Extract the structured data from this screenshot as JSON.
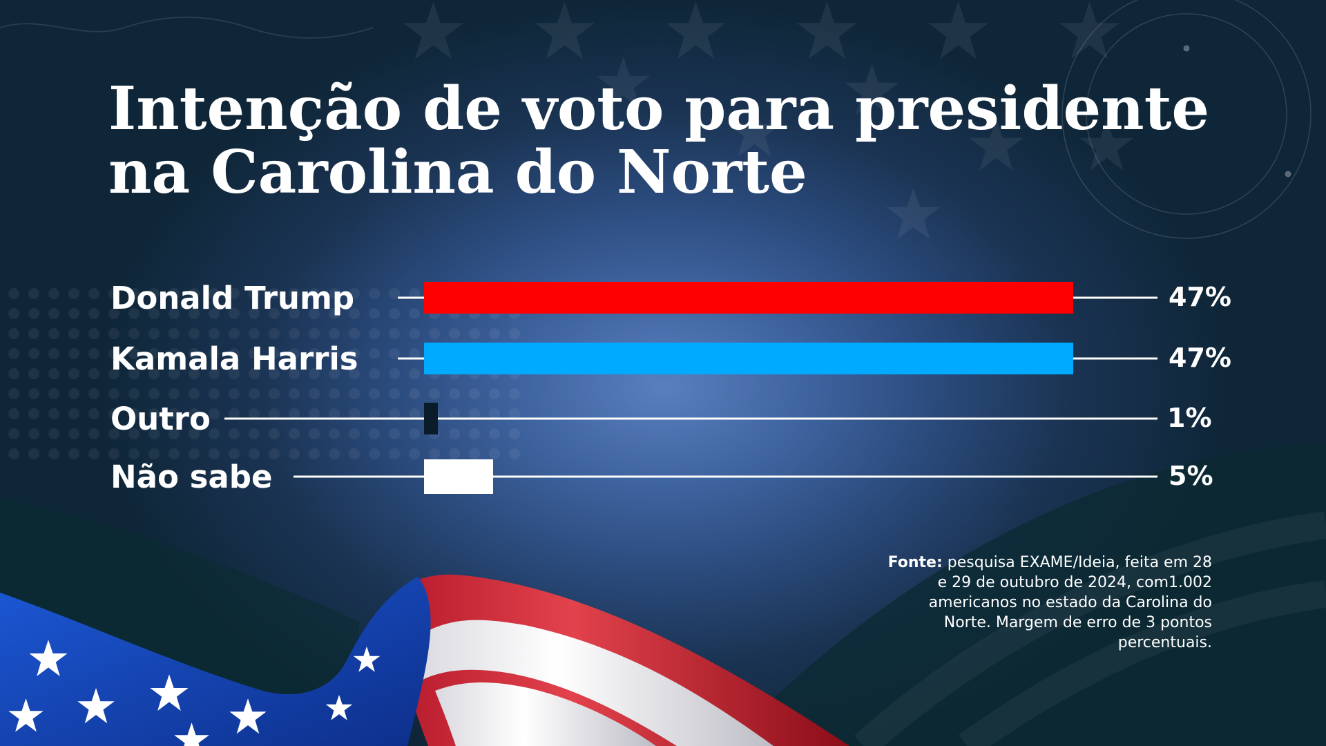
{
  "title_lines": [
    "Intenção de voto para presidente",
    "na Carolina do Norte"
  ],
  "source": {
    "label": "Fonte:",
    "text": " pesquisa EXAME/Ideia, feita em 28 e 29 de outubro de 2024, com1.002 americanos no estado da Carolina do Norte. Margem de erro de 3 pontos percentuais."
  },
  "colors": {
    "trump": "#ff0000",
    "harris": "#00aaff",
    "track": "#ffffff"
  },
  "chart_data": {
    "type": "bar",
    "orientation": "horizontal",
    "title": "Intenção de voto para presidente na Carolina do Norte",
    "xlabel": "",
    "ylabel": "",
    "xlim": [
      0,
      47
    ],
    "grid": false,
    "legend": "none",
    "categories": [
      "Donald Trump",
      "Kamala Harris",
      "Outro",
      "Não sabe"
    ],
    "values": [
      47,
      47,
      1,
      5
    ],
    "value_labels": [
      "47%",
      "47%",
      "1%",
      "5%"
    ],
    "bar_colors": [
      "#ff0000",
      "#00aaff",
      "#ffffff",
      "#ffffff"
    ]
  }
}
